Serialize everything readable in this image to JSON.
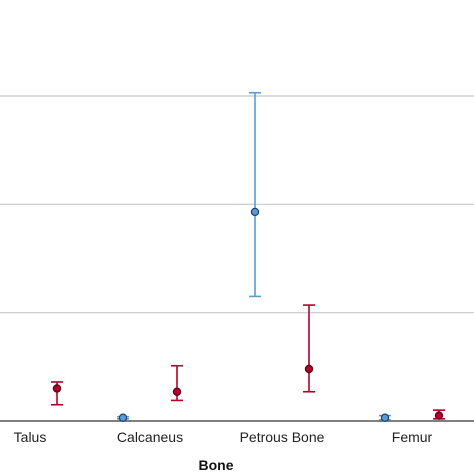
{
  "chart_data": {
    "type": "scatter",
    "xlabel": "Bone",
    "categories": [
      "Talus",
      "Calcaneus",
      "Petrous Bone",
      "Femur"
    ],
    "ylim": [
      0,
      3
    ],
    "gridlines": [
      1,
      2,
      3
    ],
    "grid": true,
    "series": [
      {
        "color": "#5b9bd5",
        "stroke": "#1f3f6e",
        "points": [
          {
            "category": "Talus",
            "mean": null,
            "low": null,
            "high": null
          },
          {
            "category": "Calcaneus",
            "mean": 0.03,
            "low": 0.02,
            "high": 0.04
          },
          {
            "category": "Petrous Bone",
            "mean": 1.93,
            "low": 1.15,
            "high": 3.03
          },
          {
            "category": "Femur",
            "mean": 0.03,
            "low": 0.01,
            "high": 0.05
          }
        ]
      },
      {
        "color": "#b2002a",
        "stroke": "#5a0016",
        "points": [
          {
            "category": "Talus",
            "mean": 0.3,
            "low": 0.15,
            "high": 0.36
          },
          {
            "category": "Calcaneus",
            "mean": 0.27,
            "low": 0.19,
            "high": 0.51
          },
          {
            "category": "Petrous Bone",
            "mean": 0.48,
            "low": 0.27,
            "high": 1.07
          },
          {
            "category": "Femur",
            "mean": 0.05,
            "low": 0.02,
            "high": 0.1
          }
        ]
      }
    ]
  }
}
